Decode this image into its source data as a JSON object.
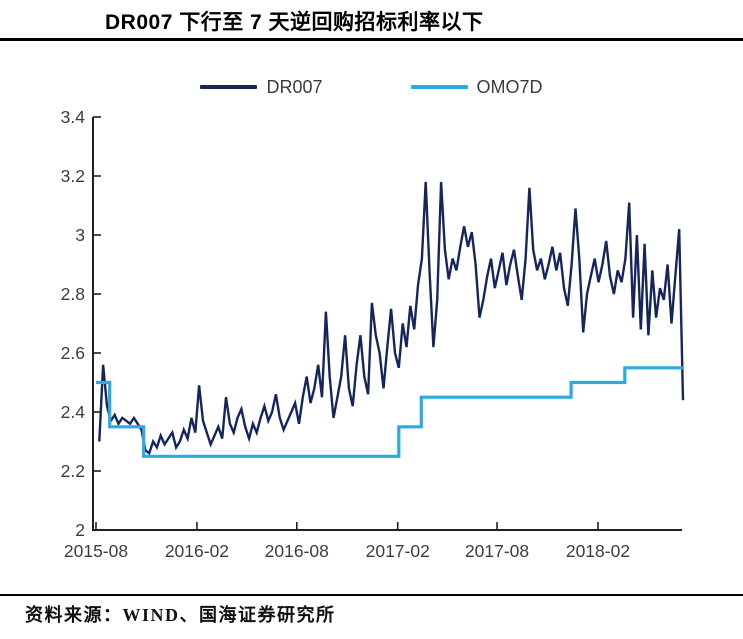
{
  "header": {
    "title": "DR007 下行至 7 天逆回购招标利率以下"
  },
  "legend": [
    {
      "label": "DR007",
      "color": "#14265c"
    },
    {
      "label": "OMO7D",
      "color": "#29abe2"
    }
  ],
  "chart_data": {
    "type": "line",
    "title": "DR007 下行至 7 天逆回购招标利率以下",
    "xlabel": "",
    "ylabel": "",
    "ylim": [
      2,
      3.4
    ],
    "grid": false,
    "legend_position": "top-center",
    "axis_color": "#1f1f1f",
    "x_range": [
      "2015-08-01",
      "2018-07-06"
    ],
    "y_ticks": [
      2,
      2.2,
      2.4,
      2.6,
      2.8,
      3,
      3.2,
      3.4
    ],
    "y_tick_labels": [
      "2",
      "2.2",
      "2.4",
      "2.6",
      "2.8",
      "3",
      "3.2",
      "3.4"
    ],
    "x_ticks": [
      {
        "label": "2015-08",
        "date": "2015-08-01"
      },
      {
        "label": "2016-02",
        "date": "2016-02-01"
      },
      {
        "label": "2016-08",
        "date": "2016-08-01"
      },
      {
        "label": "2017-02",
        "date": "2017-02-01"
      },
      {
        "label": "2017-08",
        "date": "2017-08-01"
      },
      {
        "label": "2018-02",
        "date": "2018-02-01"
      }
    ],
    "series": [
      {
        "name": "DR007",
        "color": "#14265c",
        "stroke_width": 2.4,
        "start_date": "2015-08-07",
        "interval_days": 7,
        "values": [
          2.3,
          2.56,
          2.42,
          2.37,
          2.39,
          2.36,
          2.38,
          2.37,
          2.36,
          2.38,
          2.36,
          2.34,
          2.27,
          2.26,
          2.3,
          2.28,
          2.32,
          2.29,
          2.31,
          2.33,
          2.28,
          2.3,
          2.34,
          2.31,
          2.38,
          2.33,
          2.49,
          2.37,
          2.33,
          2.29,
          2.32,
          2.35,
          2.31,
          2.45,
          2.36,
          2.33,
          2.38,
          2.41,
          2.35,
          2.31,
          2.36,
          2.33,
          2.38,
          2.42,
          2.37,
          2.4,
          2.46,
          2.38,
          2.34,
          2.37,
          2.4,
          2.43,
          2.36,
          2.45,
          2.52,
          2.43,
          2.48,
          2.56,
          2.45,
          2.74,
          2.52,
          2.38,
          2.45,
          2.52,
          2.66,
          2.48,
          2.42,
          2.56,
          2.66,
          2.52,
          2.46,
          2.77,
          2.66,
          2.6,
          2.48,
          2.62,
          2.75,
          2.6,
          2.55,
          2.7,
          2.62,
          2.76,
          2.68,
          2.83,
          2.92,
          3.18,
          2.88,
          2.62,
          2.78,
          3.18,
          2.95,
          2.85,
          2.92,
          2.88,
          2.96,
          3.03,
          2.96,
          3.01,
          2.9,
          2.72,
          2.78,
          2.86,
          2.92,
          2.82,
          2.88,
          2.94,
          2.83,
          2.9,
          2.95,
          2.86,
          2.78,
          2.92,
          3.16,
          2.95,
          2.88,
          2.92,
          2.85,
          2.9,
          2.96,
          2.88,
          2.94,
          2.82,
          2.76,
          2.9,
          3.09,
          2.92,
          2.67,
          2.8,
          2.86,
          2.92,
          2.84,
          2.9,
          2.98,
          2.86,
          2.8,
          2.88,
          2.84,
          2.92,
          3.11,
          2.72,
          3.0,
          2.68,
          2.97,
          2.66,
          2.88,
          2.72,
          2.82,
          2.78,
          2.9,
          2.7,
          2.86,
          3.02,
          2.44
        ]
      },
      {
        "name": "OMO7D",
        "color": "#29abe2",
        "stroke_width": 3.2,
        "type": "step",
        "steps": [
          [
            "2015-08-01",
            2.5
          ],
          [
            "2015-08-26",
            2.35
          ],
          [
            "2015-10-27",
            2.25
          ],
          [
            "2017-02-03",
            2.35
          ],
          [
            "2017-03-16",
            2.45
          ],
          [
            "2017-12-14",
            2.5
          ],
          [
            "2018-03-22",
            2.55
          ]
        ],
        "end_date": "2018-07-06"
      }
    ]
  },
  "footer": {
    "source": "资料来源：WIND、国海证券研究所"
  }
}
